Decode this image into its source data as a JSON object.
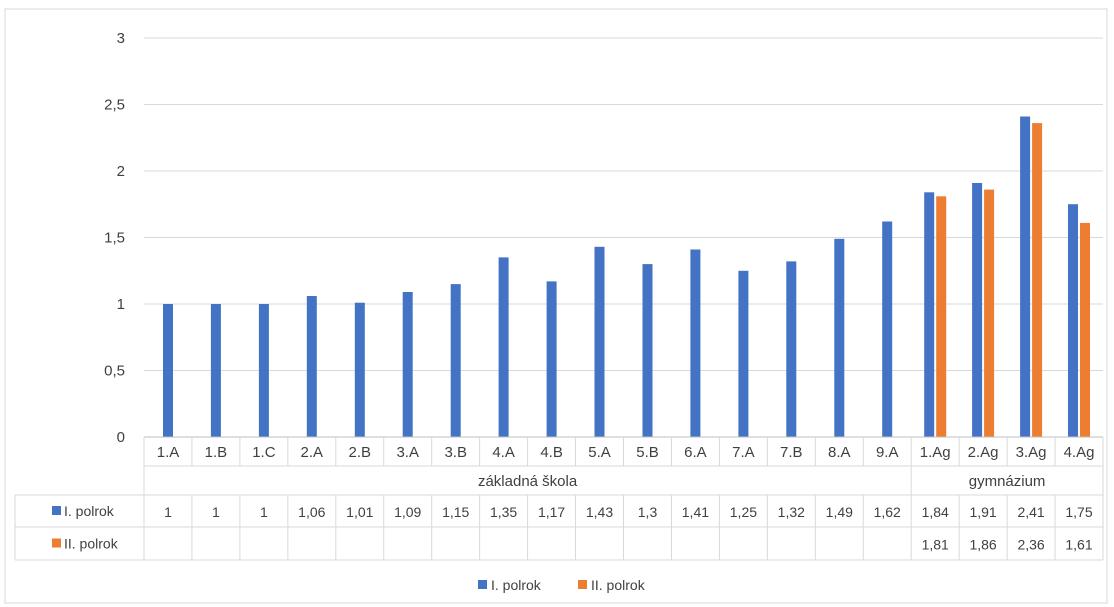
{
  "chart_data": {
    "type": "bar",
    "categories": [
      "1.A",
      "1.B",
      "1.C",
      "2.A",
      "2.B",
      "3.A",
      "3.B",
      "4.A",
      "4.B",
      "5.A",
      "5.B",
      "6.A",
      "7.A",
      "7.B",
      "8.A",
      "9.A",
      "1.Ag",
      "2.Ag",
      "3.Ag",
      "4.Ag"
    ],
    "groups": [
      {
        "label": "základná škola",
        "count": 16
      },
      {
        "label": "gymnázium",
        "count": 4
      }
    ],
    "series": [
      {
        "name": "I. polrok",
        "color": "#4472C4",
        "values": [
          1,
          1,
          1,
          1.06,
          1.01,
          1.09,
          1.15,
          1.35,
          1.17,
          1.43,
          1.3,
          1.41,
          1.25,
          1.32,
          1.49,
          1.62,
          1.84,
          1.91,
          2.41,
          1.75
        ],
        "labels": [
          "1",
          "1",
          "1",
          "1,06",
          "1,01",
          "1,09",
          "1,15",
          "1,35",
          "1,17",
          "1,43",
          "1,3",
          "1,41",
          "1,25",
          "1,32",
          "1,49",
          "1,62",
          "1,84",
          "1,91",
          "2,41",
          "1,75"
        ]
      },
      {
        "name": "II. polrok",
        "color": "#ED7D31",
        "values": [
          null,
          null,
          null,
          null,
          null,
          null,
          null,
          null,
          null,
          null,
          null,
          null,
          null,
          null,
          null,
          null,
          1.81,
          1.86,
          2.36,
          1.61
        ],
        "labels": [
          "",
          "",
          "",
          "",
          "",
          "",
          "",
          "",
          "",
          "",
          "",
          "",
          "",
          "",
          "",
          "",
          "1,81",
          "1,86",
          "2,36",
          "1,61"
        ]
      }
    ],
    "y_ticks": [
      "0",
      "0,5",
      "1",
      "1,5",
      "2",
      "2,5",
      "3"
    ],
    "ylim": [
      0,
      3
    ],
    "grid": true,
    "legend_placement": "bottom-center",
    "data_table": true
  }
}
